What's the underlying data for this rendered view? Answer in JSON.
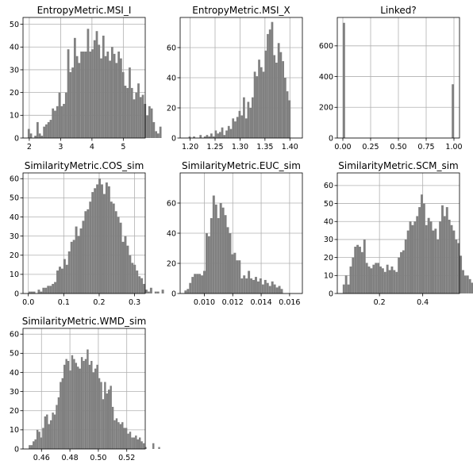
{
  "chart_data": [
    {
      "type": "bar",
      "title": "EntropyMetric.MSI_I",
      "xlim": [
        1.8,
        5.7
      ],
      "ylim": [
        0,
        53
      ],
      "xticks": [
        2,
        3,
        4,
        5
      ],
      "xtick_labels": [
        "2",
        "3",
        "4",
        "5"
      ],
      "yticks": [
        0,
        10,
        20,
        30,
        40,
        50
      ],
      "ytick_labels": [
        "0",
        "10",
        "20",
        "30",
        "40",
        "50"
      ],
      "bin_start": 1.95,
      "bin_width": 0.07,
      "values": [
        4,
        2,
        0,
        1,
        7,
        2,
        1,
        5,
        6,
        7,
        8,
        13,
        12,
        14,
        20,
        14,
        15,
        20,
        39,
        29,
        31,
        44,
        36,
        33,
        38,
        38,
        38,
        48,
        38,
        39,
        43,
        47,
        41,
        35,
        45,
        36,
        38,
        34,
        40,
        37,
        33,
        38,
        35,
        29,
        23,
        22,
        31,
        22,
        17,
        20,
        24,
        18,
        19,
        15,
        10,
        14,
        13,
        7,
        3,
        2,
        5
      ],
      "grid": true
    },
    {
      "type": "bar",
      "title": "EntropyMetric.MSI_X",
      "xlim": [
        1.18,
        1.425
      ],
      "ylim": [
        0,
        80
      ],
      "xticks": [
        1.2,
        1.25,
        1.3,
        1.35,
        1.4
      ],
      "xtick_labels": [
        "1.20",
        "1.25",
        "1.30",
        "1.35",
        "1.40"
      ],
      "yticks": [
        0,
        20,
        40,
        60
      ],
      "ytick_labels": [
        "0",
        "20",
        "40",
        "60"
      ],
      "bin_start": 1.197,
      "bin_width": 0.00435,
      "values": [
        1,
        0,
        1,
        0,
        0,
        2,
        0,
        1,
        2,
        1,
        3,
        1,
        5,
        3,
        4,
        7,
        2,
        5,
        8,
        6,
        13,
        11,
        14,
        18,
        15,
        27,
        13,
        24,
        20,
        27,
        44,
        41,
        52,
        47,
        44,
        58,
        69,
        72,
        77,
        55,
        50,
        63,
        57,
        51,
        40,
        31,
        25
      ],
      "grid": true
    },
    {
      "type": "bar",
      "title": "Linked?",
      "xlim": [
        -0.05,
        1.05
      ],
      "ylim": [
        0,
        785
      ],
      "xticks": [
        0,
        0.25,
        0.5,
        0.75,
        1
      ],
      "xtick_labels": [
        "0.00",
        "0.25",
        "0.50",
        "0.75",
        "1.00"
      ],
      "yticks": [
        0,
        200,
        400,
        600
      ],
      "ytick_labels": [
        "0",
        "200",
        "400",
        "600"
      ],
      "bin_start": 0,
      "bin_width": 0.02,
      "values": [
        750,
        0,
        0,
        0,
        0,
        0,
        0,
        0,
        0,
        0,
        0,
        0,
        0,
        0,
        0,
        0,
        0,
        0,
        0,
        0,
        0,
        0,
        0,
        0,
        0,
        0,
        0,
        0,
        0,
        0,
        0,
        0,
        0,
        0,
        0,
        0,
        0,
        0,
        0,
        0,
        0,
        0,
        0,
        0,
        0,
        0,
        0,
        0,
        0,
        350
      ],
      "grid": true
    },
    {
      "type": "bar",
      "title": "SimilarityMetric.COS_sim",
      "xlim": [
        -0.015,
        0.33
      ],
      "ylim": [
        0,
        63
      ],
      "xticks": [
        0,
        0.1,
        0.2,
        0.3
      ],
      "xtick_labels": [
        "0.0",
        "0.1",
        "0.2",
        "0.3"
      ],
      "yticks": [
        0,
        10,
        20,
        30,
        40,
        50,
        60
      ],
      "ytick_labels": [
        "0",
        "10",
        "20",
        "30",
        "40",
        "50",
        "60"
      ],
      "bin_start": 0,
      "bin_width": 0.0066,
      "values": [
        1,
        1,
        1,
        0,
        2,
        1,
        3,
        3,
        4,
        4,
        5,
        6,
        12,
        14,
        13,
        18,
        15,
        22,
        27,
        28,
        35,
        30,
        34,
        38,
        43,
        44,
        48,
        53,
        55,
        57,
        60,
        57,
        52,
        58,
        56,
        48,
        47,
        43,
        40,
        37,
        27,
        30,
        25,
        20,
        16,
        15,
        12,
        9,
        8,
        5,
        2,
        1,
        3,
        0,
        1,
        1,
        0,
        2
      ],
      "grid": true
    },
    {
      "type": "bar",
      "title": "SimilarityMetric.EUC_sim",
      "xlim": [
        0.0083,
        0.0169
      ],
      "ylim": [
        0,
        80
      ],
      "xticks": [
        0.01,
        0.012,
        0.014,
        0.016
      ],
      "xtick_labels": [
        "0.010",
        "0.012",
        "0.014",
        "0.016"
      ],
      "bin_start": 0.0086,
      "bin_width": 0.000165,
      "yticks": [
        0,
        20,
        40,
        60
      ],
      "ytick_labels": [
        "0",
        "20",
        "40",
        "60"
      ],
      "values": [
        2,
        3,
        7,
        11,
        13,
        13,
        13,
        12,
        15,
        40,
        38,
        50,
        65,
        59,
        50,
        60,
        57,
        52,
        44,
        40,
        26,
        27,
        22,
        22,
        10,
        12,
        10,
        15,
        10,
        9,
        11,
        8,
        10,
        6,
        9,
        7,
        5,
        8,
        6,
        4,
        5,
        3
      ],
      "grid": true
    },
    {
      "type": "bar",
      "title": "SimilarityMetric.SCM_sim",
      "xlim": [
        0.005,
        0.57
      ],
      "ylim": [
        0,
        67
      ],
      "xticks": [
        0.2,
        0.4
      ],
      "xtick_labels": [
        "0.2",
        "0.4"
      ],
      "yticks": [
        0,
        10,
        20,
        30,
        40,
        50,
        60
      ],
      "ytick_labels": [
        "0",
        "10",
        "20",
        "30",
        "40",
        "50",
        "60"
      ],
      "bin_start": 0.03,
      "bin_width": 0.0106,
      "values": [
        5,
        10,
        5,
        15,
        20,
        26,
        27,
        26,
        23,
        30,
        17,
        15,
        14,
        16,
        17,
        17,
        15,
        14,
        12,
        16,
        13,
        15,
        13,
        12,
        20,
        23,
        24,
        30,
        35,
        40,
        38,
        40,
        43,
        48,
        55,
        50,
        38,
        42,
        40,
        35,
        36,
        30,
        40,
        49,
        43,
        48,
        41,
        38,
        35,
        30,
        28,
        21,
        13,
        10,
        10,
        8,
        6
      ],
      "grid": true
    },
    {
      "type": "bar",
      "title": "SimilarityMetric.WMD_sim",
      "xlim": [
        0.447,
        0.533
      ],
      "ylim": [
        0,
        63
      ],
      "xticks": [
        0.46,
        0.48,
        0.5,
        0.52
      ],
      "xtick_labels": [
        "0.46",
        "0.48",
        "0.50",
        "0.52"
      ],
      "yticks": [
        0,
        10,
        20,
        30,
        40,
        50,
        60
      ],
      "ytick_labels": [
        "0",
        "10",
        "20",
        "30",
        "40",
        "50",
        "60"
      ],
      "bin_start": 0.451,
      "bin_width": 0.00136,
      "values": [
        2,
        2,
        4,
        5,
        10,
        9,
        6,
        11,
        17,
        18,
        13,
        15,
        19,
        18,
        23,
        27,
        35,
        37,
        44,
        47,
        46,
        41,
        49,
        47,
        45,
        43,
        42,
        48,
        46,
        47,
        52,
        44,
        46,
        40,
        42,
        44,
        37,
        35,
        26,
        35,
        29,
        31,
        33,
        22,
        15,
        16,
        14,
        13,
        14,
        11,
        11,
        8,
        9,
        6,
        6,
        7,
        5,
        6,
        4,
        3,
        1,
        0,
        0,
        0,
        3,
        0,
        0,
        1
      ],
      "grid": true
    }
  ]
}
